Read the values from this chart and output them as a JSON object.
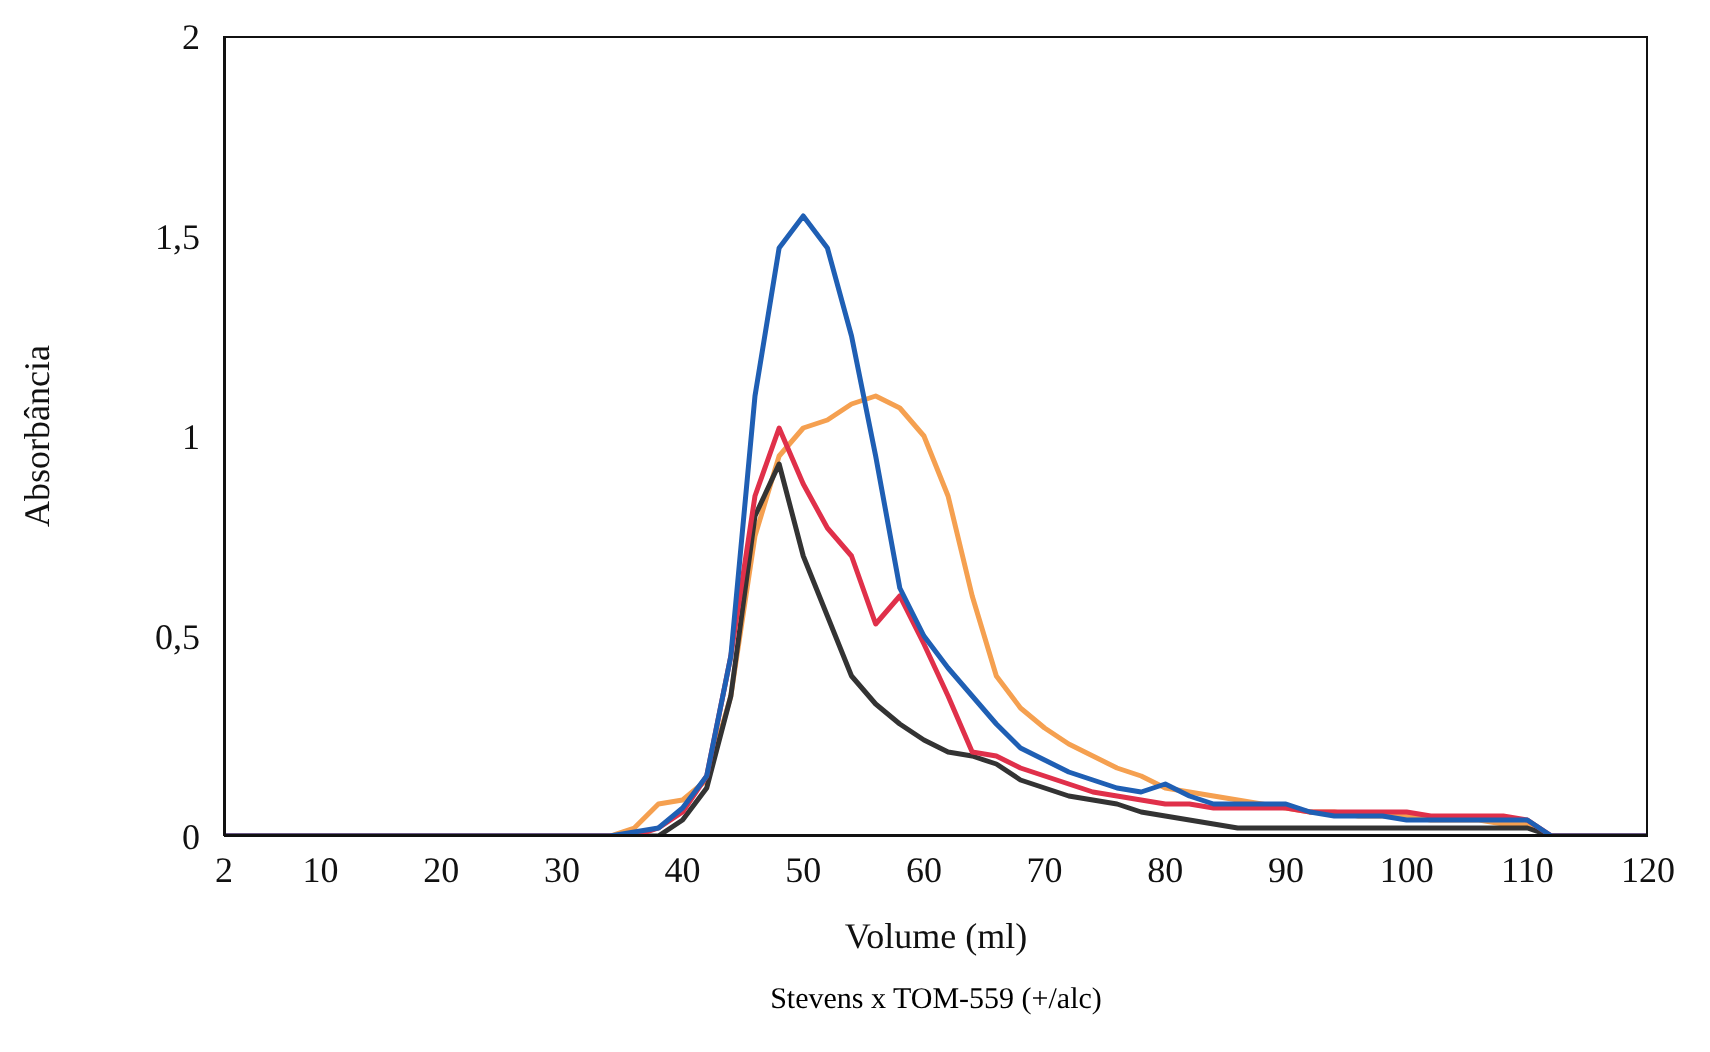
{
  "chart_data": {
    "type": "line",
    "xlabel": "Volume (ml)",
    "ylabel": "Absorbância",
    "annotations": [
      "Stevens x TOM-559 (+/alc)"
    ],
    "x": [
      2,
      34,
      36,
      38,
      40,
      42,
      44,
      46,
      48,
      50,
      52,
      54,
      56,
      58,
      60,
      62,
      64,
      66,
      68,
      70,
      72,
      74,
      76,
      78,
      80,
      82,
      84,
      86,
      88,
      90,
      92,
      94,
      96,
      98,
      100,
      102,
      104,
      106,
      108,
      110,
      112,
      120
    ],
    "xlim": [
      2,
      120
    ],
    "xticks": [
      2,
      10,
      20,
      30,
      40,
      50,
      60,
      70,
      80,
      90,
      100,
      110,
      120
    ],
    "ylim": [
      0,
      2
    ],
    "yticks": [
      0,
      {
        "value": 0.5,
        "label": "0,5"
      },
      1,
      {
        "value": 1.5,
        "label": "1,5"
      },
      2
    ],
    "grid": false,
    "legend": false,
    "marker": "none",
    "line_style": "solid",
    "series": [
      {
        "color": "#f5a050",
        "values": [
          0,
          0,
          0.02,
          0.08,
          0.09,
          0.14,
          0.35,
          0.75,
          0.95,
          1.02,
          1.04,
          1.08,
          1.1,
          1.07,
          1.0,
          0.85,
          0.6,
          0.4,
          0.32,
          0.27,
          0.23,
          0.2,
          0.17,
          0.15,
          0.12,
          0.11,
          0.1,
          0.09,
          0.08,
          0.07,
          0.06,
          0.06,
          0.05,
          0.05,
          0.05,
          0.04,
          0.04,
          0.04,
          0.03,
          0.03,
          0,
          0
        ]
      },
      {
        "color": "#333333",
        "values": [
          0,
          0,
          0,
          0,
          0.04,
          0.12,
          0.35,
          0.8,
          0.93,
          0.7,
          0.55,
          0.4,
          0.33,
          0.28,
          0.24,
          0.21,
          0.2,
          0.18,
          0.14,
          0.12,
          0.1,
          0.09,
          0.08,
          0.06,
          0.05,
          0.04,
          0.03,
          0.02,
          0.02,
          0.02,
          0.02,
          0.02,
          0.02,
          0.02,
          0.02,
          0.02,
          0.02,
          0.02,
          0.02,
          0.02,
          0,
          0
        ]
      },
      {
        "color": "#e0304a",
        "values": [
          0,
          0,
          0,
          0.02,
          0.06,
          0.15,
          0.45,
          0.85,
          1.02,
          0.88,
          0.77,
          0.7,
          0.53,
          0.6,
          0.48,
          0.35,
          0.21,
          0.2,
          0.17,
          0.15,
          0.13,
          0.11,
          0.1,
          0.09,
          0.08,
          0.08,
          0.07,
          0.07,
          0.07,
          0.07,
          0.06,
          0.06,
          0.06,
          0.06,
          0.06,
          0.05,
          0.05,
          0.05,
          0.05,
          0.04,
          0,
          0
        ]
      },
      {
        "color": "#1f5fb4",
        "values": [
          0,
          0,
          0.01,
          0.02,
          0.07,
          0.15,
          0.45,
          1.1,
          1.47,
          1.55,
          1.47,
          1.25,
          0.95,
          0.62,
          0.5,
          0.42,
          0.35,
          0.28,
          0.22,
          0.19,
          0.16,
          0.14,
          0.12,
          0.11,
          0.13,
          0.1,
          0.08,
          0.08,
          0.08,
          0.08,
          0.06,
          0.05,
          0.05,
          0.05,
          0.04,
          0.04,
          0.04,
          0.04,
          0.04,
          0.04,
          0,
          0
        ]
      }
    ]
  }
}
